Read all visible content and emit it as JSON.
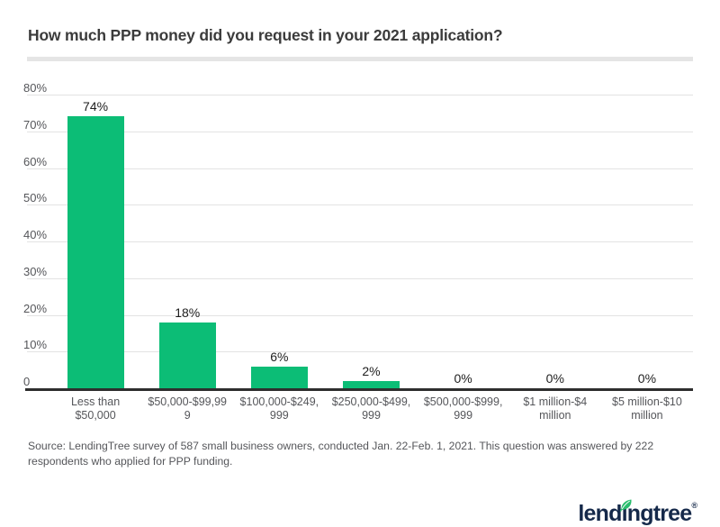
{
  "title": "How much PPP money did you request in your 2021 application?",
  "source_lines": [
    "Source: LendingTree survey of 587 small business owners, conducted Jan. 22-Feb. 1, 2021. This question was answered by 222",
    "respondents who applied for PPP funding."
  ],
  "logo": {
    "part1": "lend",
    "dotless_i": "ı",
    "part2": "ngtree",
    "registered": "®"
  },
  "colors": {
    "bar_green": "#0cbd76",
    "logo_navy": "#15294a",
    "leaf_green": "#2abd6e",
    "title_text": "#3b3b3b",
    "muted_text": "#55565a",
    "gridline": "#e3e3e3",
    "axis_line": "#2e2e2e",
    "value_label_text": "#1e1e1e"
  },
  "chart_data": {
    "type": "bar",
    "title": "How much PPP money did you request in your 2021 application?",
    "categories": [
      "Less than $50,000",
      "$50,000-$99,999",
      "$100,000-$249,999",
      "$250,000-$499,999",
      "$500,000-$999,999",
      "$1 million-$4 million",
      "$5 million-$10 million"
    ],
    "category_label_lines": [
      [
        "Less than",
        "$50,000"
      ],
      [
        "$50,000-$99,99",
        "9"
      ],
      [
        "$100,000-$249,",
        "999"
      ],
      [
        "$250,000-$499,",
        "999"
      ],
      [
        "$500,000-$999,",
        "999"
      ],
      [
        "$1 million-$4",
        "million"
      ],
      [
        "$5 million-$10",
        "million"
      ]
    ],
    "values": [
      74,
      18,
      6,
      2,
      0,
      0,
      0
    ],
    "value_labels": [
      "74%",
      "18%",
      "6%",
      "2%",
      "0%",
      "0%",
      "0%"
    ],
    "ylabel": "",
    "xlabel": "",
    "ylim": [
      0,
      80
    ],
    "ytick_values": [
      0,
      10,
      20,
      30,
      40,
      50,
      60,
      70,
      80
    ],
    "ytick_labels": [
      "0",
      "10%",
      "20%",
      "30%",
      "40%",
      "50%",
      "60%",
      "70%",
      "80%"
    ],
    "grid": "horizontal",
    "legend": "none",
    "bar_color": "#0cbd76"
  }
}
